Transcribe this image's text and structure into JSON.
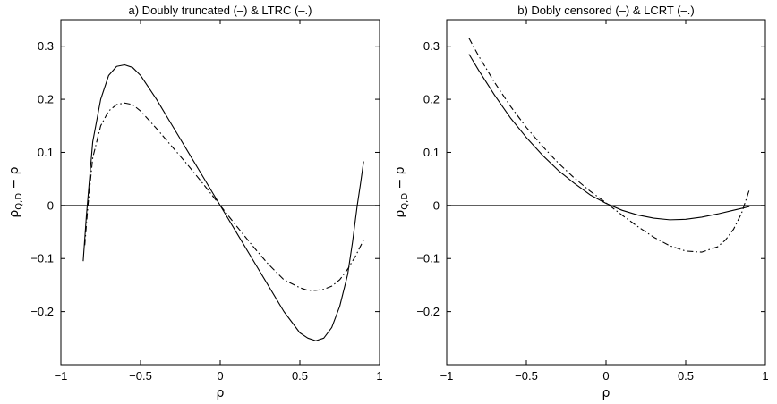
{
  "chart_data": [
    {
      "type": "line",
      "title": "a) Doubly truncated (–) & LTRC (–.)",
      "xlabel": "ρ",
      "ylabel": {
        "main": "ρ",
        "sub": "Q,D",
        "tail": " − ρ"
      },
      "xlim": [
        -1,
        1
      ],
      "ylim": [
        -0.3,
        0.35
      ],
      "xticks": [
        -1,
        -0.5,
        0,
        0.5,
        1
      ],
      "xtick_labels": [
        "−1",
        "−0.5",
        "0",
        "0.5",
        "1"
      ],
      "yticks": [
        -0.2,
        -0.1,
        0,
        0.1,
        0.2,
        0.3
      ],
      "ytick_labels": [
        "−0.2",
        "−0.1",
        "0",
        "0.1",
        "0.2",
        "0.3"
      ],
      "grid": false,
      "reference_line_y": 0,
      "series": [
        {
          "style": "solid",
          "x": [
            -0.86,
            -0.84,
            -0.8,
            -0.75,
            -0.7,
            -0.65,
            -0.6,
            -0.55,
            -0.5,
            -0.4,
            -0.3,
            -0.2,
            -0.1,
            0,
            0.1,
            0.2,
            0.3,
            0.4,
            0.5,
            0.55,
            0.6,
            0.65,
            0.7,
            0.75,
            0.8,
            0.83,
            0.86,
            0.88,
            0.9
          ],
          "y": [
            -0.105,
            -0.02,
            0.12,
            0.2,
            0.245,
            0.262,
            0.265,
            0.26,
            0.245,
            0.2,
            0.15,
            0.1,
            0.05,
            0.0,
            -0.05,
            -0.1,
            -0.15,
            -0.2,
            -0.24,
            -0.25,
            -0.255,
            -0.25,
            -0.23,
            -0.19,
            -0.13,
            -0.07,
            0.0,
            0.04,
            0.083
          ]
        },
        {
          "style": "dashdot",
          "x": [
            -0.85,
            -0.83,
            -0.8,
            -0.75,
            -0.7,
            -0.65,
            -0.6,
            -0.55,
            -0.5,
            -0.4,
            -0.3,
            -0.2,
            -0.1,
            0,
            0.1,
            0.2,
            0.3,
            0.4,
            0.5,
            0.55,
            0.6,
            0.65,
            0.7,
            0.75,
            0.8,
            0.85,
            0.9
          ],
          "y": [
            -0.075,
            0.0,
            0.09,
            0.15,
            0.178,
            0.19,
            0.193,
            0.19,
            0.178,
            0.145,
            0.11,
            0.075,
            0.038,
            0.0,
            -0.038,
            -0.075,
            -0.11,
            -0.14,
            -0.155,
            -0.16,
            -0.16,
            -0.158,
            -0.152,
            -0.14,
            -0.12,
            -0.095,
            -0.065
          ]
        }
      ]
    },
    {
      "type": "line",
      "title": "b) Dobly censored (–) & LCRT (–.)",
      "xlabel": "ρ",
      "ylabel": {
        "main": "ρ",
        "sub": "Q,D",
        "tail": " − ρ"
      },
      "xlim": [
        -1,
        1
      ],
      "ylim": [
        -0.3,
        0.35
      ],
      "xticks": [
        -1,
        -0.5,
        0,
        0.5,
        1
      ],
      "xtick_labels": [
        "−1",
        "−0.5",
        "0",
        "0.5",
        "1"
      ],
      "yticks": [
        -0.2,
        -0.1,
        0,
        0.1,
        0.2,
        0.3
      ],
      "ytick_labels": [
        "−0.2",
        "−0.1",
        "0",
        "0.1",
        "0.2",
        "0.3"
      ],
      "grid": false,
      "reference_line_y": 0,
      "series": [
        {
          "style": "solid",
          "x": [
            -0.86,
            -0.8,
            -0.7,
            -0.6,
            -0.5,
            -0.4,
            -0.3,
            -0.2,
            -0.1,
            0,
            0.1,
            0.2,
            0.3,
            0.4,
            0.5,
            0.6,
            0.7,
            0.8,
            0.9
          ],
          "y": [
            0.285,
            0.255,
            0.208,
            0.165,
            0.128,
            0.095,
            0.066,
            0.042,
            0.02,
            0.004,
            -0.009,
            -0.018,
            -0.024,
            -0.027,
            -0.026,
            -0.022,
            -0.016,
            -0.009,
            -0.002
          ]
        },
        {
          "style": "dashdot",
          "x": [
            -0.86,
            -0.8,
            -0.7,
            -0.6,
            -0.5,
            -0.4,
            -0.3,
            -0.2,
            -0.1,
            0,
            0.1,
            0.2,
            0.3,
            0.4,
            0.5,
            0.6,
            0.7,
            0.75,
            0.8,
            0.85,
            0.88,
            0.9
          ],
          "y": [
            0.315,
            0.282,
            0.232,
            0.187,
            0.147,
            0.112,
            0.08,
            0.052,
            0.027,
            0.005,
            -0.018,
            -0.04,
            -0.06,
            -0.076,
            -0.086,
            -0.088,
            -0.078,
            -0.065,
            -0.045,
            -0.015,
            0.012,
            0.03
          ]
        }
      ]
    }
  ]
}
